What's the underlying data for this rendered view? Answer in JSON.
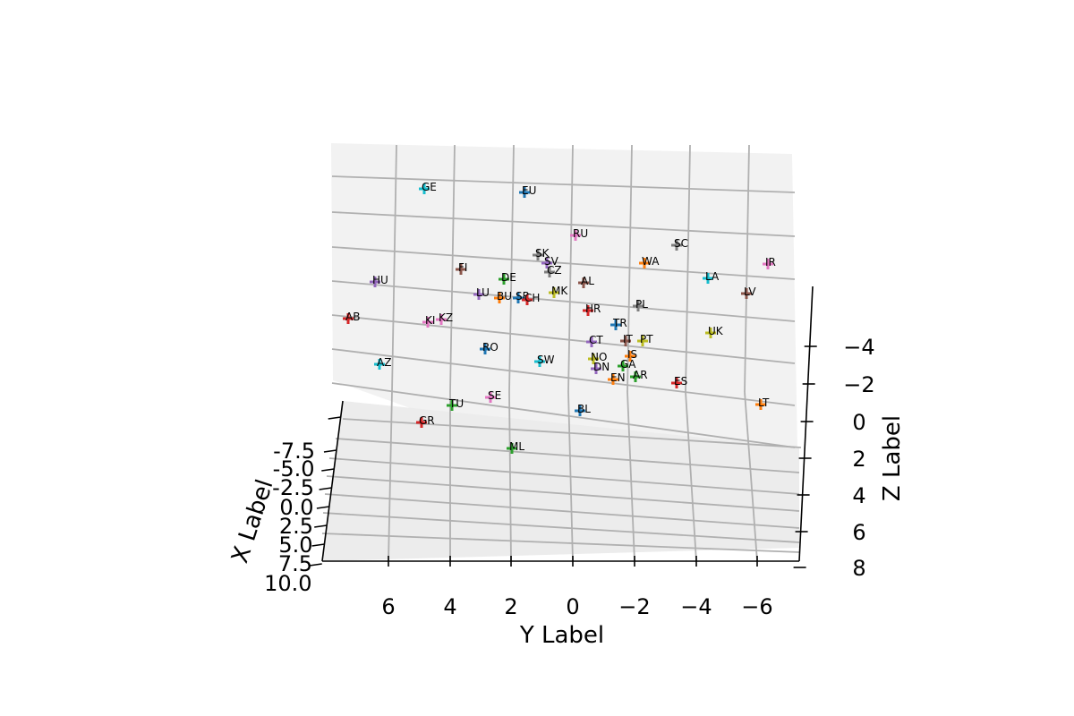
{
  "chart_data": {
    "type": "scatter",
    "projection": "3d",
    "marker": "plus",
    "x_axis": {
      "label": "X Label",
      "ticks": [
        "-7.5",
        "-5.0",
        "-2.5",
        "0.0",
        "2.5",
        "5.0",
        "7.5",
        "10.0"
      ]
    },
    "y_axis": {
      "label": "Y Label",
      "ticks": [
        "6",
        "4",
        "2",
        "0",
        "−2",
        "−4",
        "−6"
      ]
    },
    "z_axis": {
      "label": "Z Label",
      "ticks": [
        "−4",
        "−2",
        "0",
        "2",
        "4",
        "6",
        "8"
      ]
    },
    "grid": true,
    "pane_color": "#f2f2f2",
    "points": [
      {
        "label": "GE",
        "color": "#17becf"
      },
      {
        "label": "EU",
        "color": "#1f77b4"
      },
      {
        "label": "RU",
        "color": "#e377c2"
      },
      {
        "label": "SC",
        "color": "#7f7f7f"
      },
      {
        "label": "IR",
        "color": "#e377c2"
      },
      {
        "label": "SK",
        "color": "#7f7f7f"
      },
      {
        "label": "SV",
        "color": "#9467bd"
      },
      {
        "label": "WA",
        "color": "#ff7f0e"
      },
      {
        "label": "FI",
        "color": "#8c564b"
      },
      {
        "label": "CZ",
        "color": "#7f7f7f"
      },
      {
        "label": "DE",
        "color": "#2ca02c"
      },
      {
        "label": "LA",
        "color": "#17becf"
      },
      {
        "label": "HU",
        "color": "#9467bd"
      },
      {
        "label": "AL",
        "color": "#8c564b"
      },
      {
        "label": "LV",
        "color": "#8c564b"
      },
      {
        "label": "MK",
        "color": "#bcbd22"
      },
      {
        "label": "LU",
        "color": "#9467bd"
      },
      {
        "label": "BU",
        "color": "#ff7f0e"
      },
      {
        "label": "SR",
        "color": "#1f77b4"
      },
      {
        "label": "CH",
        "color": "#d62728"
      },
      {
        "label": "PL",
        "color": "#7f7f7f"
      },
      {
        "label": "AB",
        "color": "#d62728"
      },
      {
        "label": "HR",
        "color": "#d62728"
      },
      {
        "label": "KI",
        "color": "#e377c2"
      },
      {
        "label": "KZ",
        "color": "#e377c2"
      },
      {
        "label": "TR",
        "color": "#1f77b4"
      },
      {
        "label": "UK",
        "color": "#bcbd22"
      },
      {
        "label": "CT",
        "color": "#9467bd"
      },
      {
        "label": "IT",
        "color": "#8c564b"
      },
      {
        "label": "PT",
        "color": "#bcbd22"
      },
      {
        "label": "RO",
        "color": "#1f77b4"
      },
      {
        "label": "IS",
        "color": "#ff7f0e"
      },
      {
        "label": "NO",
        "color": "#bcbd22"
      },
      {
        "label": "AZ",
        "color": "#17becf"
      },
      {
        "label": "SW",
        "color": "#17becf"
      },
      {
        "label": "GA",
        "color": "#2ca02c"
      },
      {
        "label": "DN",
        "color": "#9467bd"
      },
      {
        "label": "AR",
        "color": "#2ca02c"
      },
      {
        "label": "EN",
        "color": "#ff7f0e"
      },
      {
        "label": "ES",
        "color": "#d62728"
      },
      {
        "label": "SE",
        "color": "#e377c2"
      },
      {
        "label": "TU",
        "color": "#2ca02c"
      },
      {
        "label": "BL",
        "color": "#1f77b4"
      },
      {
        "label": "LT",
        "color": "#ff7f0e"
      },
      {
        "label": "GR",
        "color": "#d62728"
      },
      {
        "label": "ML",
        "color": "#2ca02c"
      }
    ]
  }
}
